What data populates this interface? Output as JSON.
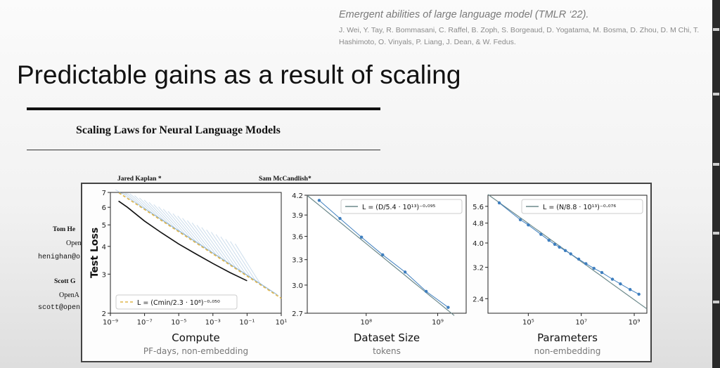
{
  "slide": {
    "citation_title": "Emergent abilities of large language model (TMLR ‘22).",
    "citation_authors": "J. Wei, Y. Tay, R. Bommasani, C. Raffel, B. Zoph, S. Borgeaud, D. Yogatama, M. Bosma, D. Zhou, D. M Chi, T. Hashimoto, O. Vinyals, P. Liang, J. Dean, & W. Fedus.",
    "title": "Predictable gains as a result of scaling"
  },
  "paper": {
    "title": "Scaling Laws for Neural Language Models",
    "authors": [
      "Jared Kaplan *",
      "Sam McCandlish*"
    ],
    "side_author_1": "Tom He",
    "side_aff_1": "Open",
    "side_mail_1": "henighan@o",
    "side_author_2": "Scott G",
    "side_aff_2": "OpenA",
    "side_mail_2": "scott@open"
  },
  "colors": {
    "compute_curves": "#8fb3d4",
    "envelope": "#111111",
    "fit_dash": "#e0b64a",
    "fit_line": "#6d8a8c",
    "markers": "#3f7fbf"
  },
  "chart_data": [
    {
      "type": "line",
      "ylabel": "Test Loss",
      "xlabel": "Compute",
      "xsub": "PF-days, non-embedding",
      "x_scale": "log",
      "y_scale": "log",
      "xlim": [
        1e-09,
        10
      ],
      "ylim": [
        2,
        7
      ],
      "x_tick_labels": [
        "10⁻⁹",
        "10⁻⁷",
        "10⁻⁵",
        "10⁻³",
        "10⁻¹",
        "10¹"
      ],
      "x_ticks": [
        1e-09,
        1e-07,
        1e-05,
        0.001,
        0.1,
        10
      ],
      "y_tick_labels": [
        "2",
        "3",
        "4",
        "5",
        "6",
        "7"
      ],
      "y_ticks": [
        2,
        3,
        4,
        5,
        6,
        7
      ],
      "legend": {
        "label": "L = (Cmin/2.3 · 10⁸)⁻⁰·⁰⁵⁰",
        "placement": "lower-left"
      },
      "fit": {
        "c0": 230000000.0,
        "alpha": 0.05
      },
      "envelope": {
        "x": [
          3e-09,
          1e-08,
          1e-07,
          1e-06,
          1e-05,
          0.0001,
          0.001,
          0.01,
          0.1
        ],
        "y": [
          6.4,
          6.0,
          5.2,
          4.6,
          4.1,
          3.7,
          3.35,
          3.05,
          2.8
        ]
      }
    },
    {
      "type": "line",
      "xlabel": "Dataset Size",
      "xsub": "tokens",
      "x_scale": "log",
      "y_scale": "log",
      "xlim": [
        15000000.0,
        2500000000.0
      ],
      "ylim": [
        2.7,
        4.2
      ],
      "x_tick_labels": [
        "10⁸",
        "10⁹"
      ],
      "x_ticks": [
        100000000.0,
        1000000000.0
      ],
      "y_tick_labels": [
        "2.7",
        "3.0",
        "3.3",
        "3.6",
        "3.9",
        "4.2"
      ],
      "y_ticks": [
        2.7,
        3.0,
        3.3,
        3.6,
        3.9,
        4.2
      ],
      "legend": {
        "label": "L = (D/5.4 · 10¹³)⁻⁰·⁰⁹⁵",
        "placement": "top-right"
      },
      "fit": {
        "c0": 54000000000000.0,
        "alpha": 0.095
      },
      "points": {
        "x": [
          22000000.0,
          43000000.0,
          86000000.0,
          170000000.0,
          350000000.0,
          690000000.0,
          1400000000.0
        ],
        "y": [
          4.12,
          3.85,
          3.59,
          3.36,
          3.15,
          2.93,
          2.76
        ]
      }
    },
    {
      "type": "line",
      "xlabel": "Parameters",
      "xsub": "non-embedding",
      "x_scale": "log",
      "y_scale": "log",
      "xlim": [
        3000.0,
        3000000000.0
      ],
      "ylim": [
        2.1,
        6.2
      ],
      "x_tick_labels": [
        "10⁵",
        "10⁷",
        "10⁹"
      ],
      "x_ticks": [
        100000.0,
        10000000.0,
        1000000000.0
      ],
      "y_tick_labels": [
        "2.4",
        "3.2",
        "4.0",
        "4.8",
        "5.6"
      ],
      "y_ticks": [
        2.4,
        3.2,
        4.0,
        4.8,
        5.6
      ],
      "legend": {
        "label": "L = (N/8.8 · 10¹³)⁻⁰·⁰⁷⁶",
        "placement": "top-right"
      },
      "fit": {
        "c0": 88000000000000.0,
        "alpha": 0.076
      },
      "points": {
        "x": [
          8000.0,
          50000.0,
          100000.0,
          300000.0,
          600000.0,
          1000000.0,
          1500000.0,
          2500000.0,
          4000000.0,
          8000000.0,
          15000000.0,
          30000000.0,
          60000000.0,
          150000000.0,
          300000000.0,
          700000000.0,
          1500000000.0
        ],
        "y": [
          5.78,
          4.95,
          4.72,
          4.33,
          4.1,
          3.95,
          3.85,
          3.73,
          3.62,
          3.45,
          3.31,
          3.17,
          3.05,
          2.87,
          2.75,
          2.61,
          2.5
        ]
      }
    }
  ]
}
